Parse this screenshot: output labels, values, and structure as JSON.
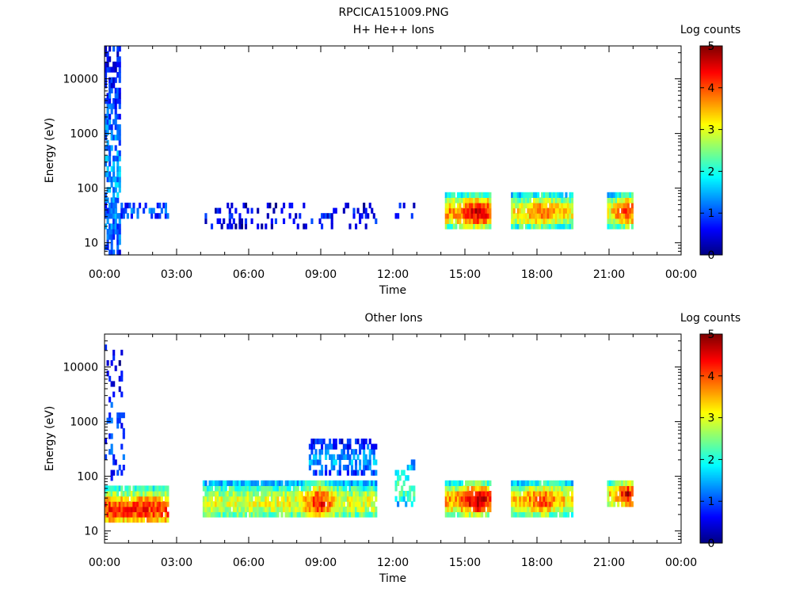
{
  "figure": {
    "title": "RPCICA151009.PNG"
  },
  "chart_data": [
    {
      "type": "heatmap",
      "title": "H+ He++ Ions",
      "xlabel": "Time",
      "ylabel": "Energy (eV)",
      "x_scale": "time",
      "y_scale": "log",
      "xlim": [
        "00:00",
        "24:00"
      ],
      "ylim": [
        6,
        40000
      ],
      "x_tick_labels": [
        "00:00",
        "03:00",
        "06:00",
        "09:00",
        "12:00",
        "15:00",
        "18:00",
        "21:00",
        "00:00"
      ],
      "y_tick_values": [
        10,
        100,
        1000,
        10000
      ],
      "y_tick_labels": [
        "10",
        "100",
        "1000",
        "10000"
      ],
      "colorbar": {
        "label": "Log counts",
        "range": [
          0,
          5
        ],
        "tick_labels": [
          "0",
          "1",
          "2",
          "3",
          "4",
          "5"
        ],
        "colormap": "jet"
      },
      "blocks": [
        {
          "t_start": "00:00",
          "t_end": "00:40",
          "e_min": 6,
          "e_max": 40000,
          "level": 1.2,
          "density": "dense"
        },
        {
          "t_start": "00:00",
          "t_end": "02:40",
          "e_min": 25,
          "e_max": 60,
          "level": 0.9,
          "density": "medium"
        },
        {
          "t_start": "04:05",
          "t_end": "11:20",
          "e_min": 18,
          "e_max": 60,
          "level": 0.6,
          "density": "sparse"
        },
        {
          "t_start": "12:05",
          "t_end": "12:55",
          "e_min": 25,
          "e_max": 60,
          "level": 0.6,
          "density": "sparse"
        },
        {
          "t_start": "14:10",
          "t_end": "16:05",
          "e_min": 18,
          "e_max": 95,
          "level": 3.2,
          "peak_time": "15:30",
          "peak_level": 4.0,
          "density": "full"
        },
        {
          "t_start": "16:55",
          "t_end": "19:30",
          "e_min": 18,
          "e_max": 95,
          "level": 2.8,
          "peak_time": "18:10",
          "peak_level": 3.4,
          "density": "full"
        },
        {
          "t_start": "20:55",
          "t_end": "22:00",
          "e_min": 18,
          "e_max": 95,
          "level": 2.6,
          "peak_time": "21:45",
          "peak_level": 3.6,
          "density": "full"
        }
      ]
    },
    {
      "type": "heatmap",
      "title": "Other Ions",
      "xlabel": "Time",
      "ylabel": "Energy (eV)",
      "x_scale": "time",
      "y_scale": "log",
      "xlim": [
        "00:00",
        "24:00"
      ],
      "ylim": [
        6,
        40000
      ],
      "x_tick_labels": [
        "00:00",
        "03:00",
        "06:00",
        "09:00",
        "12:00",
        "15:00",
        "18:00",
        "21:00",
        "00:00"
      ],
      "y_tick_values": [
        10,
        100,
        1000,
        10000
      ],
      "y_tick_labels": [
        "10",
        "100",
        "1000",
        "10000"
      ],
      "colorbar": {
        "label": "Log counts",
        "range": [
          0,
          5
        ],
        "tick_labels": [
          "0",
          "1",
          "2",
          "3",
          "4",
          "5"
        ],
        "colormap": "jet"
      },
      "blocks": [
        {
          "t_start": "00:00",
          "t_end": "02:40",
          "e_min": 12,
          "e_max": 70,
          "level": 3.6,
          "density": "full"
        },
        {
          "t_start": "00:00",
          "t_end": "00:50",
          "e_min": 70,
          "e_max": 30000,
          "level": 0.8,
          "density": "sparse"
        },
        {
          "t_start": "04:05",
          "t_end": "11:20",
          "e_min": 15,
          "e_max": 100,
          "level": 2.6,
          "peak_time": "08:55",
          "peak_level": 3.8,
          "density": "full"
        },
        {
          "t_start": "08:30",
          "t_end": "11:20",
          "e_min": 100,
          "e_max": 500,
          "level": 1.2,
          "density": "medium"
        },
        {
          "t_start": "12:05",
          "t_end": "12:55",
          "e_min": 25,
          "e_max": 250,
          "level": 2.0,
          "density": "medium"
        },
        {
          "t_start": "14:10",
          "t_end": "16:05",
          "e_min": 18,
          "e_max": 95,
          "level": 3.2,
          "peak_time": "15:30",
          "peak_level": 4.2,
          "density": "full"
        },
        {
          "t_start": "16:55",
          "t_end": "19:30",
          "e_min": 18,
          "e_max": 95,
          "level": 2.9,
          "peak_time": "18:10",
          "peak_level": 3.6,
          "density": "full"
        },
        {
          "t_start": "20:55",
          "t_end": "22:00",
          "e_min": 25,
          "e_max": 95,
          "level": 2.6,
          "peak_time": "21:45",
          "peak_level": 4.0,
          "density": "full"
        }
      ]
    }
  ]
}
